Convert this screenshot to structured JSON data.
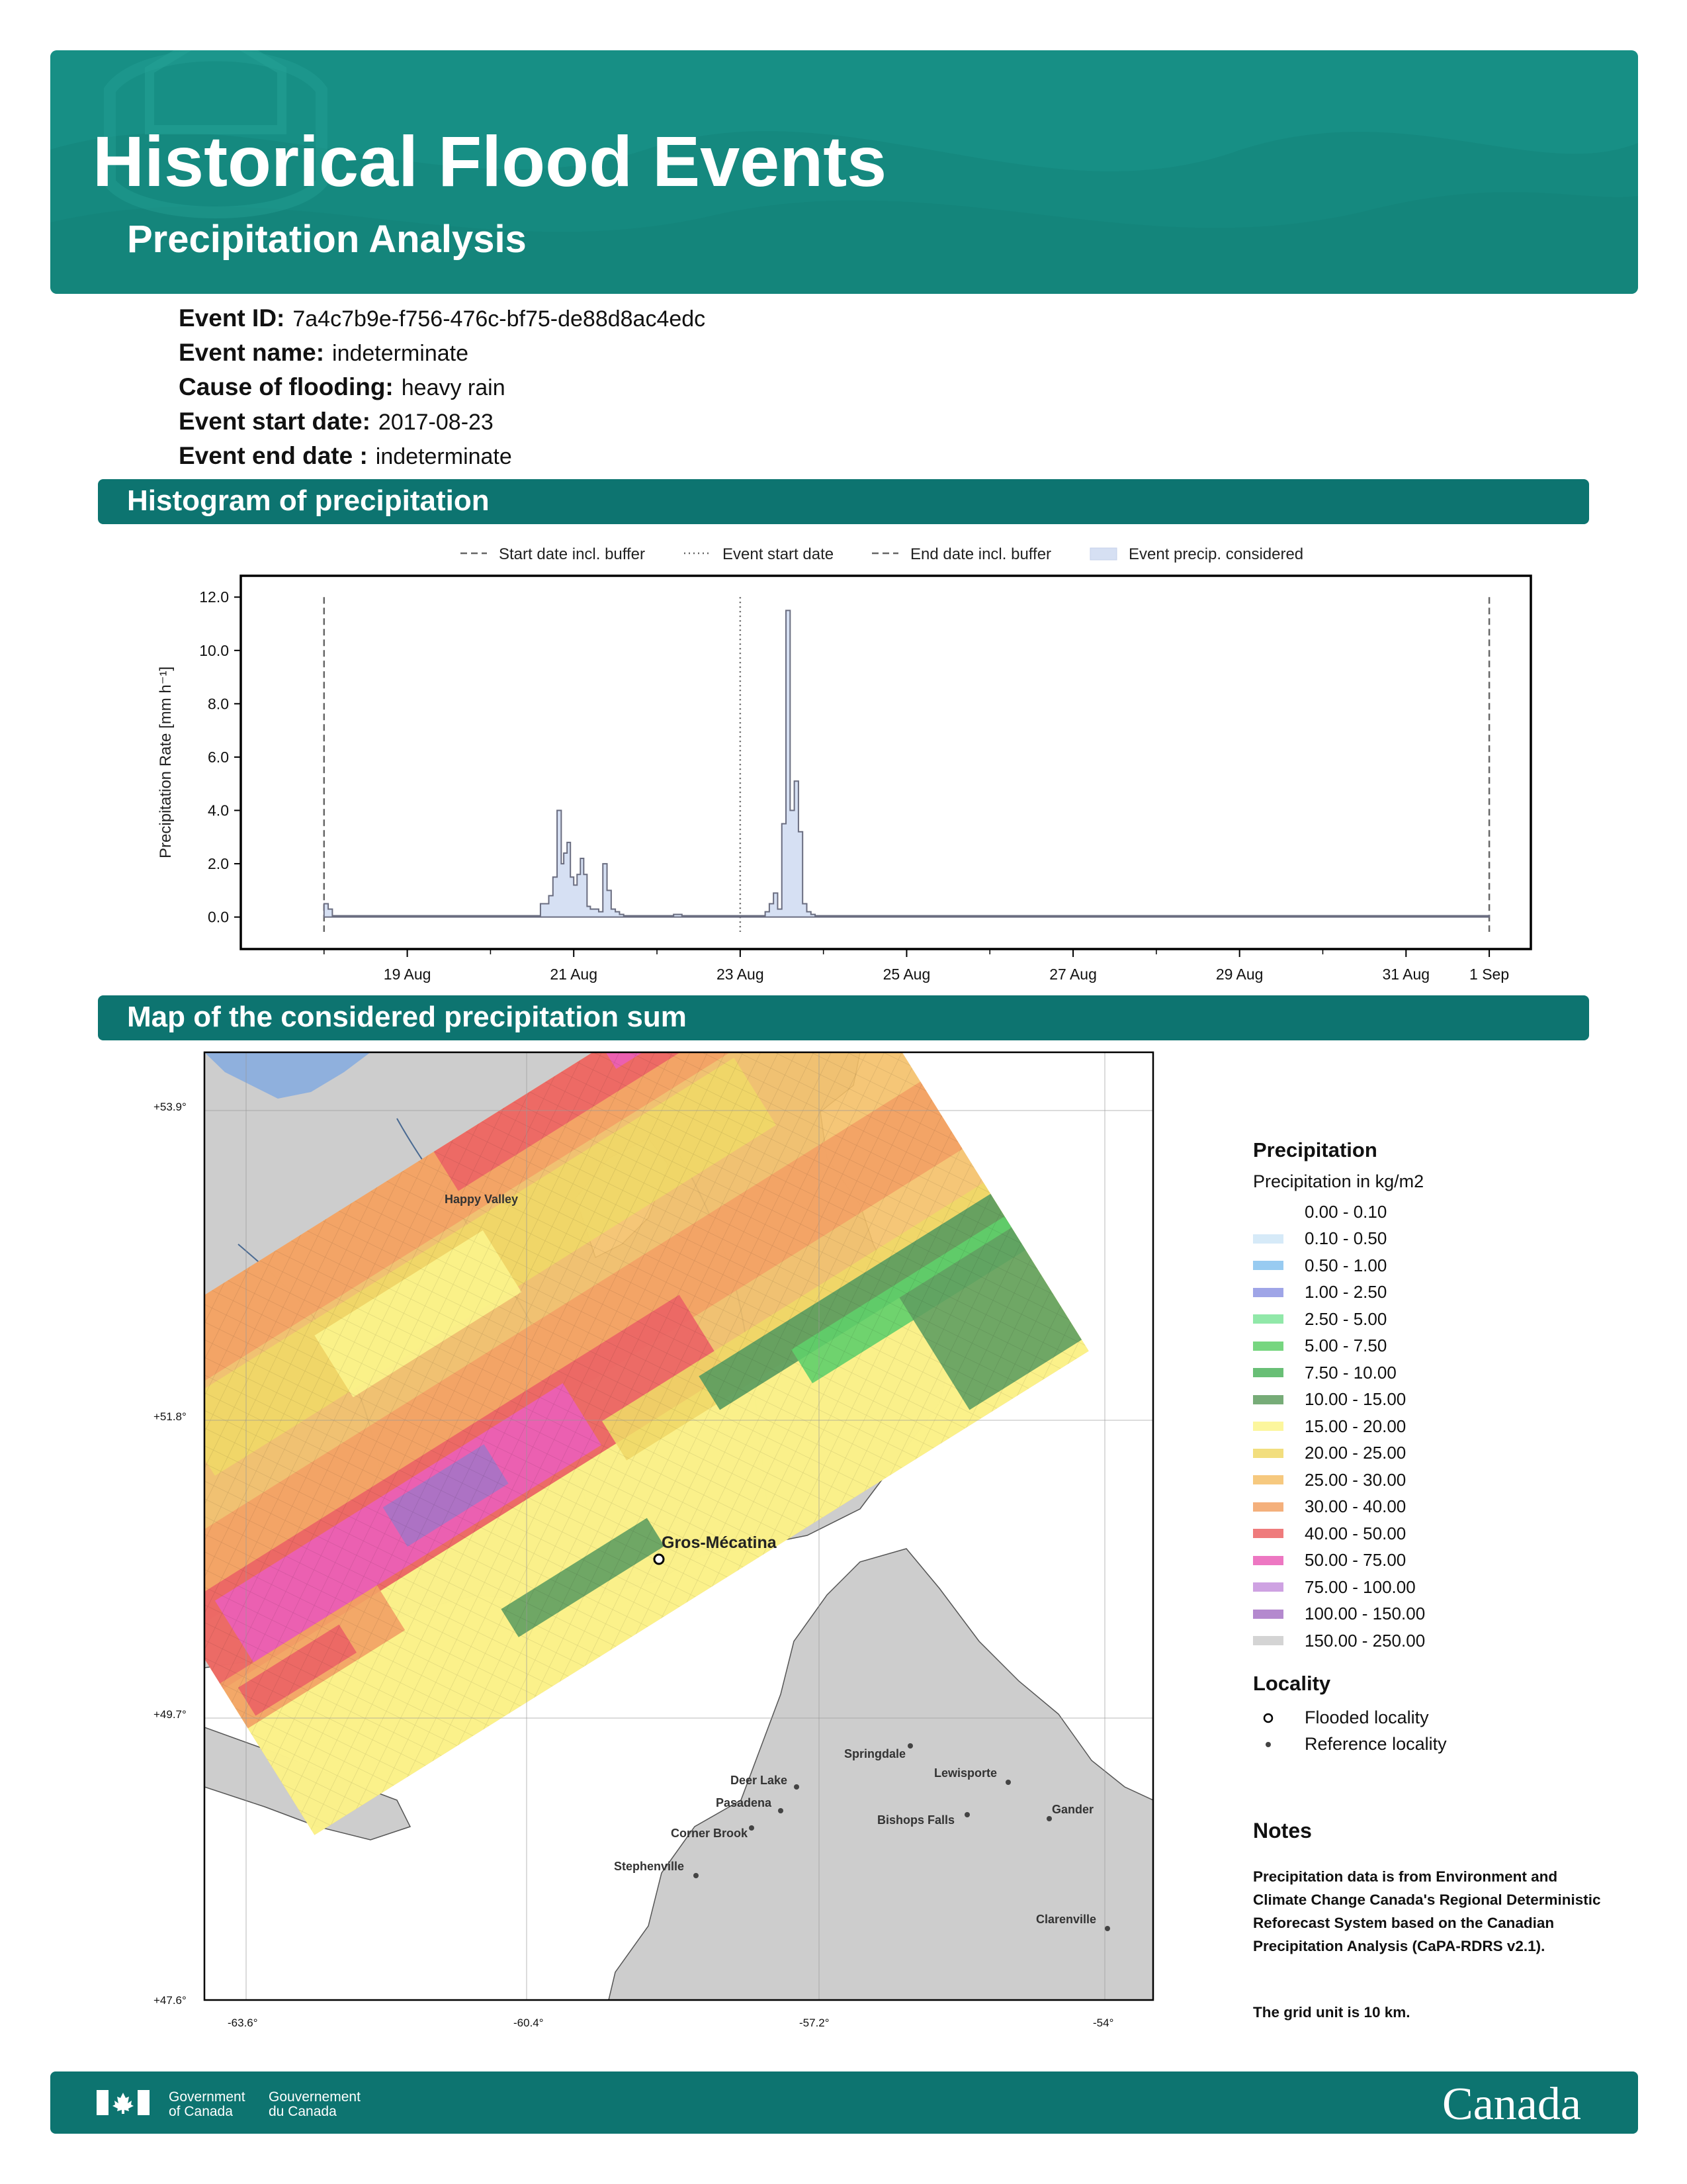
{
  "header": {
    "title": "Historical Flood Events",
    "subtitle": "Precipitation Analysis",
    "accent": "#15897f",
    "section_color": "#0d7470"
  },
  "event": {
    "id_label": "Event ID:",
    "id_value": "7a4c7b9e-f756-476c-bf75-de88d8ac4edc",
    "name_label": "Event name:",
    "name_value": "indeterminate",
    "cause_label": "Cause of flooding:",
    "cause_value": "heavy rain",
    "start_label": "Event start date:",
    "start_value": "2017-08-23",
    "end_label": "Event end date :",
    "end_value": "indeterminate"
  },
  "sections": {
    "histogram": "Histogram of precipitation",
    "map": "Map of the considered precipitation sum"
  },
  "chart_data": {
    "type": "area",
    "title": "",
    "xlabel": "",
    "ylabel": "Precipitation Rate [mm h⁻¹]",
    "ylim": [
      -1.2,
      12.8
    ],
    "y_ticks": [
      "0.0",
      "2.0",
      "4.0",
      "6.0",
      "8.0",
      "10.0",
      "12.0"
    ],
    "x_ticks": [
      "19 Aug",
      "21 Aug",
      "23 Aug",
      "25 Aug",
      "27 Aug",
      "29 Aug",
      "31 Aug",
      "1 Sep"
    ],
    "x_range_days": [
      17.0,
      32.5
    ],
    "legend": [
      "Start date incl. buffer",
      "Event start date",
      "End date incl. buffer",
      "Event precip. considered"
    ],
    "legend_position": "top",
    "fill_color": "#d6e0f3",
    "markers": {
      "start_buffer": "2017-08-18",
      "event_start": "2017-08-23",
      "end_buffer": "2017-09-01"
    },
    "series": [
      {
        "x": [
          18.0,
          18.05,
          18.1,
          18.5,
          19.5,
          20.5,
          20.6,
          20.65,
          20.7,
          20.75,
          20.8,
          20.85,
          20.88,
          20.92,
          20.96,
          21.0,
          21.04,
          21.08,
          21.12,
          21.16,
          21.2,
          21.25,
          21.3,
          21.35,
          21.4,
          21.45,
          21.5,
          21.55,
          21.6,
          21.8,
          22.2,
          22.25,
          22.3,
          22.8,
          23.0,
          23.3,
          23.35,
          23.4,
          23.45,
          23.5,
          23.55,
          23.6,
          23.65,
          23.7,
          23.75,
          23.8,
          23.85,
          23.9,
          24.0,
          24.3,
          25.0,
          26.0,
          27.0,
          28.0,
          29.0,
          30.0,
          31.0,
          32.0
        ],
        "y": [
          0.5,
          0.3,
          0.05,
          0.05,
          0.05,
          0.05,
          0.5,
          0.5,
          0.8,
          1.5,
          4.0,
          2.0,
          2.4,
          2.8,
          1.5,
          1.2,
          1.6,
          2.2,
          1.6,
          0.4,
          0.3,
          0.3,
          0.2,
          2.0,
          1.0,
          0.3,
          0.2,
          0.1,
          0.05,
          0.05,
          0.1,
          0.1,
          0.05,
          0.05,
          0.05,
          0.2,
          0.5,
          0.9,
          0.3,
          3.5,
          11.5,
          4.0,
          5.1,
          3.2,
          0.5,
          0.2,
          0.1,
          0.05,
          0.05,
          0.05,
          0.05,
          0.05,
          0.05,
          0.05,
          0.05,
          0.05,
          0.05,
          0.05
        ]
      }
    ]
  },
  "map": {
    "lat_labels": [
      "+53.9°",
      "+51.8°",
      "+49.7°",
      "+47.6°"
    ],
    "lon_labels": [
      "-63.6°",
      "-60.4°",
      "-57.2°",
      "-54°"
    ],
    "flooded_locality": "Gros-Mécatina",
    "reference_localities": [
      "Happy Valley",
      "Springdale",
      "Lewisporte",
      "Deer Lake",
      "Pasadena",
      "Bishops Falls",
      "Gander",
      "Corner Brook",
      "Stephenville",
      "Clarenville"
    ]
  },
  "map_legend": {
    "title": "Precipitation",
    "subtitle": "Precipitation in kg/m2",
    "items": [
      {
        "label": "0.00 - 0.10",
        "color": "#ffffff"
      },
      {
        "label": "0.10 - 0.50",
        "color": "#cfe6f7"
      },
      {
        "label": "0.50 - 1.00",
        "color": "#86c2ee"
      },
      {
        "label": "1.00 - 2.50",
        "color": "#8e95e3"
      },
      {
        "label": "2.50 - 5.00",
        "color": "#7ee49a"
      },
      {
        "label": "5.00 - 7.50",
        "color": "#5fcf6a"
      },
      {
        "label": "7.50 - 10.00",
        "color": "#4fb45e"
      },
      {
        "label": "10.00 - 15.00",
        "color": "#5f9e60"
      },
      {
        "label": "15.00 - 20.00",
        "color": "#fbf48c"
      },
      {
        "label": "20.00 - 25.00",
        "color": "#f0d867"
      },
      {
        "label": "25.00 - 30.00",
        "color": "#f4c068"
      },
      {
        "label": "30.00 - 40.00",
        "color": "#f2a265"
      },
      {
        "label": "40.00 - 50.00",
        "color": "#ec6465"
      },
      {
        "label": "50.00 - 75.00",
        "color": "#ea5fb7"
      },
      {
        "label": "75.00 - 100.00",
        "color": "#c692dd"
      },
      {
        "label": "100.00 - 150.00",
        "color": "#a774c6"
      },
      {
        "label": "150.00 - 250.00",
        "color": "#cdcdcd"
      }
    ],
    "locality_title": "Locality",
    "flooded_label": "Flooded locality",
    "reference_label": "Reference locality"
  },
  "notes": {
    "title": "Notes",
    "text": "Precipitation data is from Environment and Climate Change Canada's Regional Deterministic Reforecast System based on the Canadian Precipitation Analysis (CaPA-RDRS v2.1).",
    "grid": "The grid unit is 10 km."
  },
  "footer": {
    "gov_en_1": "Government",
    "gov_en_2": "of Canada",
    "gov_fr_1": "Gouvernement",
    "gov_fr_2": "du Canada",
    "wordmark": "Canada"
  }
}
